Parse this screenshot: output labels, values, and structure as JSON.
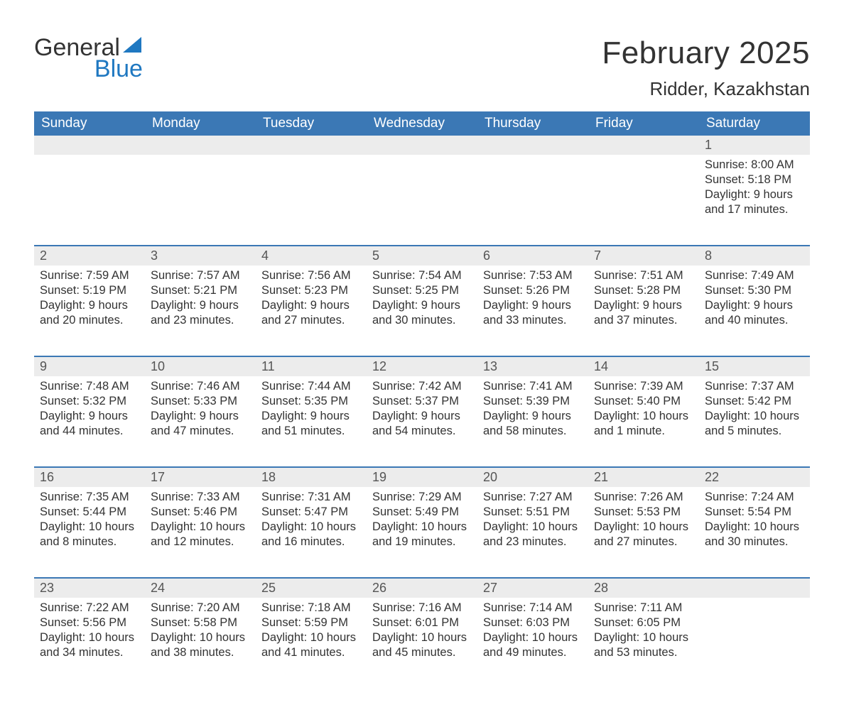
{
  "brand": {
    "general": "General",
    "blue": "Blue",
    "accent": "#1f78c1"
  },
  "title": "February 2025",
  "location": "Ridder, Kazakhstan",
  "header_bg": "#3b78b5",
  "daynum_bg": "#ececec",
  "weekdays": [
    "Sunday",
    "Monday",
    "Tuesday",
    "Wednesday",
    "Thursday",
    "Friday",
    "Saturday"
  ],
  "weeks": [
    {
      "nums": [
        "",
        "",
        "",
        "",
        "",
        "",
        "1"
      ],
      "cells": [
        null,
        null,
        null,
        null,
        null,
        null,
        {
          "sunrise": "Sunrise: 8:00 AM",
          "sunset": "Sunset: 5:18 PM",
          "day1": "Daylight: 9 hours",
          "day2": "and 17 minutes."
        }
      ]
    },
    {
      "nums": [
        "2",
        "3",
        "4",
        "5",
        "6",
        "7",
        "8"
      ],
      "cells": [
        {
          "sunrise": "Sunrise: 7:59 AM",
          "sunset": "Sunset: 5:19 PM",
          "day1": "Daylight: 9 hours",
          "day2": "and 20 minutes."
        },
        {
          "sunrise": "Sunrise: 7:57 AM",
          "sunset": "Sunset: 5:21 PM",
          "day1": "Daylight: 9 hours",
          "day2": "and 23 minutes."
        },
        {
          "sunrise": "Sunrise: 7:56 AM",
          "sunset": "Sunset: 5:23 PM",
          "day1": "Daylight: 9 hours",
          "day2": "and 27 minutes."
        },
        {
          "sunrise": "Sunrise: 7:54 AM",
          "sunset": "Sunset: 5:25 PM",
          "day1": "Daylight: 9 hours",
          "day2": "and 30 minutes."
        },
        {
          "sunrise": "Sunrise: 7:53 AM",
          "sunset": "Sunset: 5:26 PM",
          "day1": "Daylight: 9 hours",
          "day2": "and 33 minutes."
        },
        {
          "sunrise": "Sunrise: 7:51 AM",
          "sunset": "Sunset: 5:28 PM",
          "day1": "Daylight: 9 hours",
          "day2": "and 37 minutes."
        },
        {
          "sunrise": "Sunrise: 7:49 AM",
          "sunset": "Sunset: 5:30 PM",
          "day1": "Daylight: 9 hours",
          "day2": "and 40 minutes."
        }
      ]
    },
    {
      "nums": [
        "9",
        "10",
        "11",
        "12",
        "13",
        "14",
        "15"
      ],
      "cells": [
        {
          "sunrise": "Sunrise: 7:48 AM",
          "sunset": "Sunset: 5:32 PM",
          "day1": "Daylight: 9 hours",
          "day2": "and 44 minutes."
        },
        {
          "sunrise": "Sunrise: 7:46 AM",
          "sunset": "Sunset: 5:33 PM",
          "day1": "Daylight: 9 hours",
          "day2": "and 47 minutes."
        },
        {
          "sunrise": "Sunrise: 7:44 AM",
          "sunset": "Sunset: 5:35 PM",
          "day1": "Daylight: 9 hours",
          "day2": "and 51 minutes."
        },
        {
          "sunrise": "Sunrise: 7:42 AM",
          "sunset": "Sunset: 5:37 PM",
          "day1": "Daylight: 9 hours",
          "day2": "and 54 minutes."
        },
        {
          "sunrise": "Sunrise: 7:41 AM",
          "sunset": "Sunset: 5:39 PM",
          "day1": "Daylight: 9 hours",
          "day2": "and 58 minutes."
        },
        {
          "sunrise": "Sunrise: 7:39 AM",
          "sunset": "Sunset: 5:40 PM",
          "day1": "Daylight: 10 hours",
          "day2": "and 1 minute."
        },
        {
          "sunrise": "Sunrise: 7:37 AM",
          "sunset": "Sunset: 5:42 PM",
          "day1": "Daylight: 10 hours",
          "day2": "and 5 minutes."
        }
      ]
    },
    {
      "nums": [
        "16",
        "17",
        "18",
        "19",
        "20",
        "21",
        "22"
      ],
      "cells": [
        {
          "sunrise": "Sunrise: 7:35 AM",
          "sunset": "Sunset: 5:44 PM",
          "day1": "Daylight: 10 hours",
          "day2": "and 8 minutes."
        },
        {
          "sunrise": "Sunrise: 7:33 AM",
          "sunset": "Sunset: 5:46 PM",
          "day1": "Daylight: 10 hours",
          "day2": "and 12 minutes."
        },
        {
          "sunrise": "Sunrise: 7:31 AM",
          "sunset": "Sunset: 5:47 PM",
          "day1": "Daylight: 10 hours",
          "day2": "and 16 minutes."
        },
        {
          "sunrise": "Sunrise: 7:29 AM",
          "sunset": "Sunset: 5:49 PM",
          "day1": "Daylight: 10 hours",
          "day2": "and 19 minutes."
        },
        {
          "sunrise": "Sunrise: 7:27 AM",
          "sunset": "Sunset: 5:51 PM",
          "day1": "Daylight: 10 hours",
          "day2": "and 23 minutes."
        },
        {
          "sunrise": "Sunrise: 7:26 AM",
          "sunset": "Sunset: 5:53 PM",
          "day1": "Daylight: 10 hours",
          "day2": "and 27 minutes."
        },
        {
          "sunrise": "Sunrise: 7:24 AM",
          "sunset": "Sunset: 5:54 PM",
          "day1": "Daylight: 10 hours",
          "day2": "and 30 minutes."
        }
      ]
    },
    {
      "nums": [
        "23",
        "24",
        "25",
        "26",
        "27",
        "28",
        ""
      ],
      "cells": [
        {
          "sunrise": "Sunrise: 7:22 AM",
          "sunset": "Sunset: 5:56 PM",
          "day1": "Daylight: 10 hours",
          "day2": "and 34 minutes."
        },
        {
          "sunrise": "Sunrise: 7:20 AM",
          "sunset": "Sunset: 5:58 PM",
          "day1": "Daylight: 10 hours",
          "day2": "and 38 minutes."
        },
        {
          "sunrise": "Sunrise: 7:18 AM",
          "sunset": "Sunset: 5:59 PM",
          "day1": "Daylight: 10 hours",
          "day2": "and 41 minutes."
        },
        {
          "sunrise": "Sunrise: 7:16 AM",
          "sunset": "Sunset: 6:01 PM",
          "day1": "Daylight: 10 hours",
          "day2": "and 45 minutes."
        },
        {
          "sunrise": "Sunrise: 7:14 AM",
          "sunset": "Sunset: 6:03 PM",
          "day1": "Daylight: 10 hours",
          "day2": "and 49 minutes."
        },
        {
          "sunrise": "Sunrise: 7:11 AM",
          "sunset": "Sunset: 6:05 PM",
          "day1": "Daylight: 10 hours",
          "day2": "and 53 minutes."
        },
        null
      ]
    }
  ]
}
